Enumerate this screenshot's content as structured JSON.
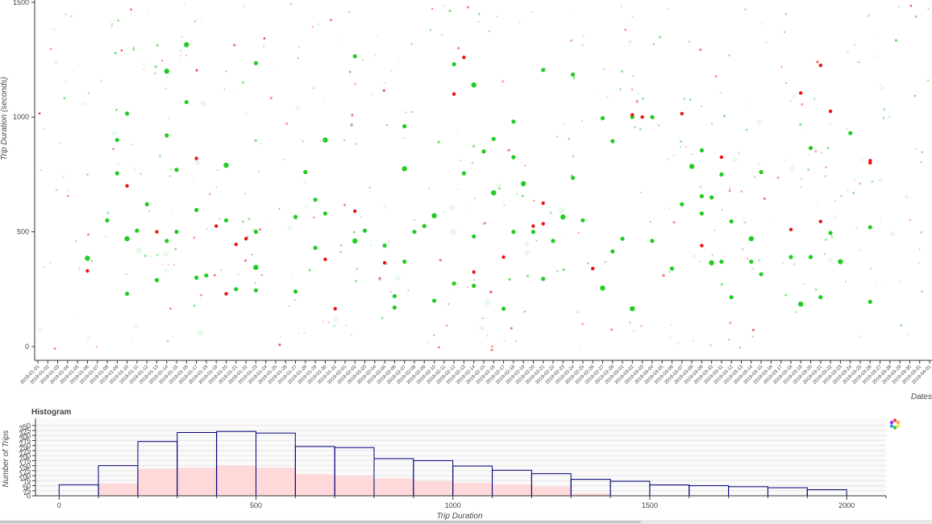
{
  "chart_data": [
    {
      "type": "scatter",
      "title": "",
      "xlabel": "Dates",
      "ylabel": "Trip Duration (seconds)",
      "ylim": [
        -60,
        1510
      ],
      "yticks": [
        0,
        500,
        1000,
        1500
      ],
      "x_start": "2019-01-01",
      "x_end": "2019-04-01",
      "dates": [
        "2019-01-01",
        "2019-01-02",
        "2019-01-03",
        "2019-01-04",
        "2019-01-05",
        "2019-01-06",
        "2019-01-07",
        "2019-01-08",
        "2019-01-09",
        "2019-01-10",
        "2019-01-11",
        "2019-01-12",
        "2019-01-13",
        "2019-01-14",
        "2019-01-15",
        "2019-01-16",
        "2019-01-17",
        "2019-01-18",
        "2019-01-19",
        "2019-01-20",
        "2019-01-21",
        "2019-01-22",
        "2019-01-23",
        "2019-01-24",
        "2019-01-25",
        "2019-01-26",
        "2019-01-27",
        "2019-01-28",
        "2019-01-29",
        "2019-01-30",
        "2019-01-31",
        "2019-02-01",
        "2019-02-02",
        "2019-02-03",
        "2019-02-04",
        "2019-02-05",
        "2019-02-06",
        "2019-02-07",
        "2019-02-08",
        "2019-02-09",
        "2019-02-10",
        "2019-02-11",
        "2019-02-12",
        "2019-02-13",
        "2019-02-14",
        "2019-02-15",
        "2019-02-16",
        "2019-02-17",
        "2019-02-18",
        "2019-02-19",
        "2019-02-20",
        "2019-02-21",
        "2019-02-22",
        "2019-02-23",
        "2019-02-24",
        "2019-02-25",
        "2019-02-26",
        "2019-02-27",
        "2019-02-28",
        "2019-03-01",
        "2019-03-02",
        "2019-03-03",
        "2019-03-04",
        "2019-03-05",
        "2019-03-06",
        "2019-03-07",
        "2019-03-08",
        "2019-03-09",
        "2019-03-10",
        "2019-03-11",
        "2019-03-12",
        "2019-03-13",
        "2019-03-14",
        "2019-03-15",
        "2019-03-16",
        "2019-03-17",
        "2019-03-18",
        "2019-03-19",
        "2019-03-20",
        "2019-03-21",
        "2019-03-22",
        "2019-03-23",
        "2019-03-24",
        "2019-03-25",
        "2019-03-26",
        "2019-03-27",
        "2019-03-28",
        "2019-03-29",
        "2019-03-30",
        "2019-03-31",
        "2019-04-01"
      ],
      "series": [
        {
          "color": "#22cc22",
          "points": [
            [
              "2019-01-06",
              385
            ],
            [
              "2019-01-08",
              550
            ],
            [
              "2019-01-09",
              900
            ],
            [
              "2019-01-09",
              755
            ],
            [
              "2019-01-10",
              1015
            ],
            [
              "2019-01-10",
              470
            ],
            [
              "2019-01-10",
              230
            ],
            [
              "2019-01-11",
              505
            ],
            [
              "2019-01-12",
              620
            ],
            [
              "2019-01-13",
              290
            ],
            [
              "2019-01-14",
              1200
            ],
            [
              "2019-01-14",
              920
            ],
            [
              "2019-01-14",
              460
            ],
            [
              "2019-01-15",
              770
            ],
            [
              "2019-01-15",
              500
            ],
            [
              "2019-01-16",
              1315
            ],
            [
              "2019-01-16",
              1065
            ],
            [
              "2019-01-17",
              595
            ],
            [
              "2019-01-17",
              300
            ],
            [
              "2019-01-18",
              310
            ],
            [
              "2019-01-20",
              790
            ],
            [
              "2019-01-20",
              550
            ],
            [
              "2019-01-21",
              250
            ],
            [
              "2019-01-23",
              1235
            ],
            [
              "2019-01-23",
              500
            ],
            [
              "2019-01-23",
              345
            ],
            [
              "2019-01-23",
              245
            ],
            [
              "2019-01-27",
              565
            ],
            [
              "2019-01-28",
              760
            ],
            [
              "2019-01-27",
              240
            ],
            [
              "2019-01-30",
              900
            ],
            [
              "2019-01-30",
              580
            ],
            [
              "2019-01-29",
              640
            ],
            [
              "2019-01-29",
              430
            ],
            [
              "2019-02-02",
              1265
            ],
            [
              "2019-02-02",
              460
            ],
            [
              "2019-02-03",
              505
            ],
            [
              "2019-02-05",
              440
            ],
            [
              "2019-02-06",
              170
            ],
            [
              "2019-02-06",
              220
            ],
            [
              "2019-02-07",
              775
            ],
            [
              "2019-02-07",
              960
            ],
            [
              "2019-02-07",
              370
            ],
            [
              "2019-02-08",
              500
            ],
            [
              "2019-02-09",
              525
            ],
            [
              "2019-02-10",
              570
            ],
            [
              "2019-02-10",
              200
            ],
            [
              "2019-02-12",
              1230
            ],
            [
              "2019-02-12",
              275
            ],
            [
              "2019-02-13",
              755
            ],
            [
              "2019-02-14",
              1140
            ],
            [
              "2019-02-14",
              480
            ],
            [
              "2019-02-14",
              265
            ],
            [
              "2019-02-15",
              850
            ],
            [
              "2019-02-16",
              905
            ],
            [
              "2019-02-16",
              670
            ],
            [
              "2019-02-17",
              165
            ],
            [
              "2019-02-18",
              825
            ],
            [
              "2019-02-18",
              980
            ],
            [
              "2019-02-18",
              500
            ],
            [
              "2019-02-19",
              710
            ],
            [
              "2019-02-20",
              500
            ],
            [
              "2019-02-21",
              1205
            ],
            [
              "2019-02-21",
              295
            ],
            [
              "2019-02-22",
              460
            ],
            [
              "2019-02-23",
              565
            ],
            [
              "2019-02-24",
              1185
            ],
            [
              "2019-02-24",
              735
            ],
            [
              "2019-02-25",
              550
            ],
            [
              "2019-02-27",
              995
            ],
            [
              "2019-02-27",
              255
            ],
            [
              "2019-02-28",
              895
            ],
            [
              "2019-02-28",
              415
            ],
            [
              "2019-03-01",
              470
            ],
            [
              "2019-03-02",
              1000
            ],
            [
              "2019-03-02",
              165
            ],
            [
              "2019-03-04",
              1000
            ],
            [
              "2019-03-04",
              460
            ],
            [
              "2019-03-06",
              340
            ],
            [
              "2019-03-07",
              620
            ],
            [
              "2019-03-08",
              785
            ],
            [
              "2019-03-09",
              855
            ],
            [
              "2019-03-09",
              655
            ],
            [
              "2019-03-09",
              580
            ],
            [
              "2019-03-10",
              650
            ],
            [
              "2019-03-10",
              365
            ],
            [
              "2019-03-11",
              750
            ],
            [
              "2019-03-11",
              370
            ],
            [
              "2019-03-12",
              545
            ],
            [
              "2019-03-12",
              215
            ],
            [
              "2019-03-14",
              470
            ],
            [
              "2019-03-14",
              370
            ],
            [
              "2019-03-15",
              760
            ],
            [
              "2019-03-15",
              315
            ],
            [
              "2019-03-18",
              390
            ],
            [
              "2019-03-19",
              185
            ],
            [
              "2019-03-20",
              865
            ],
            [
              "2019-03-20",
              390
            ],
            [
              "2019-03-21",
              215
            ],
            [
              "2019-03-22",
              495
            ],
            [
              "2019-03-23",
              370
            ],
            [
              "2019-03-24",
              930
            ],
            [
              "2019-03-26",
              520
            ],
            [
              "2019-03-26",
              195
            ]
          ]
        },
        {
          "color": "#ee1111",
          "points": [
            [
              "2019-01-06",
              330
            ],
            [
              "2019-01-10",
              700
            ],
            [
              "2019-01-13",
              500
            ],
            [
              "2019-01-17",
              820
            ],
            [
              "2019-01-19",
              525
            ],
            [
              "2019-01-20",
              230
            ],
            [
              "2019-01-21",
              445
            ],
            [
              "2019-01-22",
              470
            ],
            [
              "2019-01-30",
              380
            ],
            [
              "2019-01-31",
              165
            ],
            [
              "2019-02-02",
              590
            ],
            [
              "2019-02-05",
              365
            ],
            [
              "2019-02-12",
              1100
            ],
            [
              "2019-02-14",
              325
            ],
            [
              "2019-02-13",
              1260
            ],
            [
              "2019-02-17",
              390
            ],
            [
              "2019-02-21",
              625
            ],
            [
              "2019-02-21",
              535
            ],
            [
              "2019-02-20",
              525
            ],
            [
              "2019-03-02",
              1010
            ],
            [
              "2019-03-03",
              1000
            ],
            [
              "2019-03-09",
              440
            ],
            [
              "2019-03-11",
              825
            ],
            [
              "2019-03-19",
              1105
            ],
            [
              "2019-03-21",
              1225
            ],
            [
              "2019-03-22",
              1025
            ],
            [
              "2019-03-21",
              545
            ],
            [
              "2019-03-26",
              810
            ],
            [
              "2019-03-26",
              800
            ],
            [
              "2019-03-18",
              510
            ],
            [
              "2019-03-07",
              1015
            ],
            [
              "2019-02-26",
              340
            ]
          ]
        }
      ]
    },
    {
      "type": "bar",
      "title": "Histogram",
      "xlabel": "Trip Duration",
      "ylabel": "Number of Trips",
      "xlim": [
        -60,
        2100
      ],
      "ylim": [
        0,
        385
      ],
      "xticks": [
        0,
        500,
        1000,
        1500,
        2000
      ],
      "yticks": [
        0,
        25,
        50,
        75,
        100,
        125,
        150,
        175,
        200,
        225,
        250,
        275,
        300,
        325,
        350
      ],
      "bin_edges": [
        0,
        100,
        200,
        300,
        400,
        500,
        600,
        700,
        800,
        900,
        1000,
        1100,
        1200,
        1300,
        1400,
        1500,
        1600,
        1700,
        1800,
        1900,
        2000
      ],
      "series": [
        {
          "name": "",
          "color": "#00007a",
          "fill": "none",
          "values": [
            55,
            150,
            270,
            315,
            320,
            312,
            245,
            240,
            185,
            175,
            148,
            127,
            110,
            82,
            72,
            54,
            50,
            45,
            40,
            30
          ]
        },
        {
          "name": "",
          "color": "#ffb3b3",
          "fill": "#ffd9d9",
          "values": [
            0,
            62,
            135,
            140,
            150,
            140,
            107,
            100,
            87,
            72,
            65,
            56,
            45,
            12,
            0,
            0,
            0,
            0,
            0,
            0
          ]
        }
      ]
    }
  ]
}
